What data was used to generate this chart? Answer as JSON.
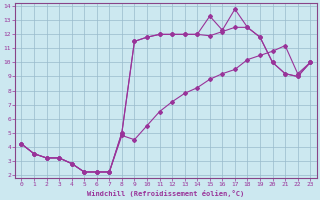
{
  "xlabel": "Windchill (Refroidissement éolien,°C)",
  "background_color": "#cce8f0",
  "line_color": "#993399",
  "xlim": [
    -0.5,
    23.5
  ],
  "ylim": [
    1.8,
    14.2
  ],
  "xticks": [
    0,
    1,
    2,
    3,
    4,
    5,
    6,
    7,
    8,
    9,
    10,
    11,
    12,
    13,
    14,
    15,
    16,
    17,
    18,
    19,
    20,
    21,
    22,
    23
  ],
  "yticks": [
    2,
    3,
    4,
    5,
    6,
    7,
    8,
    9,
    10,
    11,
    12,
    13,
    14
  ],
  "line1_x": [
    0,
    1,
    2,
    3,
    4,
    5,
    6,
    7,
    8,
    9,
    10,
    11,
    12,
    13,
    14,
    15,
    16,
    17,
    18,
    19,
    20,
    21,
    22,
    23
  ],
  "line1_y": [
    4.2,
    3.5,
    3.2,
    3.2,
    2.8,
    2.2,
    2.2,
    2.2,
    4.8,
    4.5,
    5.5,
    6.5,
    7.2,
    7.8,
    8.2,
    8.8,
    9.2,
    9.5,
    10.2,
    10.5,
    10.8,
    11.2,
    9.2,
    10.0
  ],
  "line2_x": [
    0,
    1,
    2,
    3,
    4,
    5,
    6,
    7,
    8,
    9,
    10,
    11,
    12,
    13,
    14,
    15,
    16,
    17,
    18,
    19,
    20,
    21,
    22,
    23
  ],
  "line2_y": [
    4.2,
    3.5,
    3.2,
    3.2,
    2.8,
    2.2,
    2.2,
    2.2,
    5.0,
    11.5,
    11.8,
    12.0,
    12.0,
    12.0,
    12.0,
    11.9,
    12.2,
    12.5,
    12.5,
    11.8,
    10.0,
    9.2,
    9.0,
    10.0
  ],
  "line3_x": [
    0,
    1,
    2,
    3,
    4,
    5,
    6,
    7,
    8,
    9,
    10,
    11,
    12,
    13,
    14,
    15,
    16,
    17,
    18,
    19,
    20,
    21,
    22,
    23
  ],
  "line3_y": [
    4.2,
    3.5,
    3.2,
    3.2,
    2.8,
    2.2,
    2.2,
    2.2,
    5.0,
    11.5,
    11.8,
    12.0,
    12.0,
    12.0,
    12.0,
    13.3,
    12.3,
    13.8,
    12.5,
    11.8,
    10.0,
    9.2,
    9.0,
    10.0
  ]
}
